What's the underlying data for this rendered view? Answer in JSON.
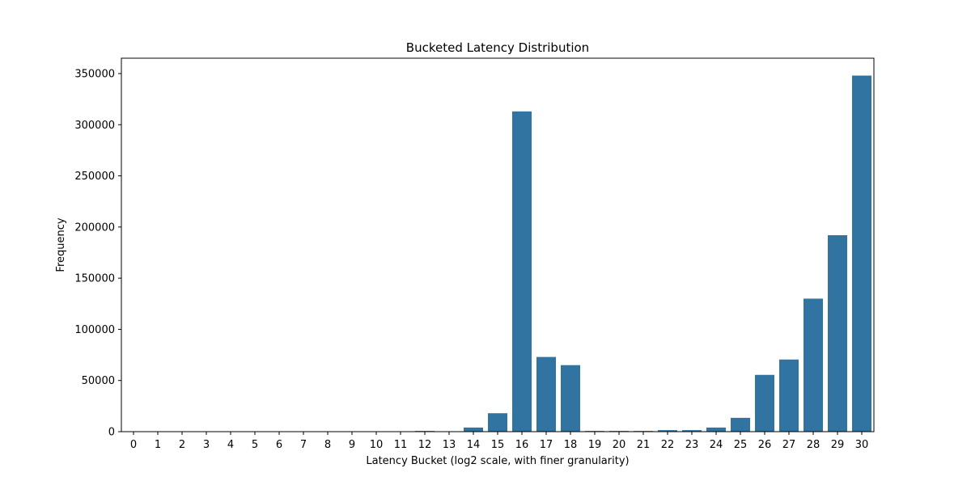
{
  "chart_data": {
    "type": "bar",
    "title": "Bucketed Latency Distribution",
    "xlabel": "Latency Bucket (log2 scale, with finer granularity)",
    "ylabel": "Frequency",
    "categories": [
      "0",
      "1",
      "2",
      "3",
      "4",
      "5",
      "6",
      "7",
      "8",
      "9",
      "10",
      "11",
      "12",
      "13",
      "14",
      "15",
      "16",
      "17",
      "18",
      "19",
      "20",
      "21",
      "22",
      "23",
      "24",
      "25",
      "26",
      "27",
      "28",
      "29",
      "30"
    ],
    "values": [
      0,
      0,
      0,
      0,
      0,
      0,
      0,
      0,
      0,
      0,
      0,
      0,
      700,
      200,
      4000,
      18000,
      313000,
      73000,
      65000,
      700,
      700,
      700,
      1500,
      1500,
      4000,
      13500,
      55500,
      70500,
      130000,
      192000,
      348000
    ],
    "ylim": [
      0,
      365000
    ],
    "yticks": [
      0,
      50000,
      100000,
      150000,
      200000,
      250000,
      300000,
      350000
    ],
    "bar_color": "#3274a1",
    "grid": false
  }
}
